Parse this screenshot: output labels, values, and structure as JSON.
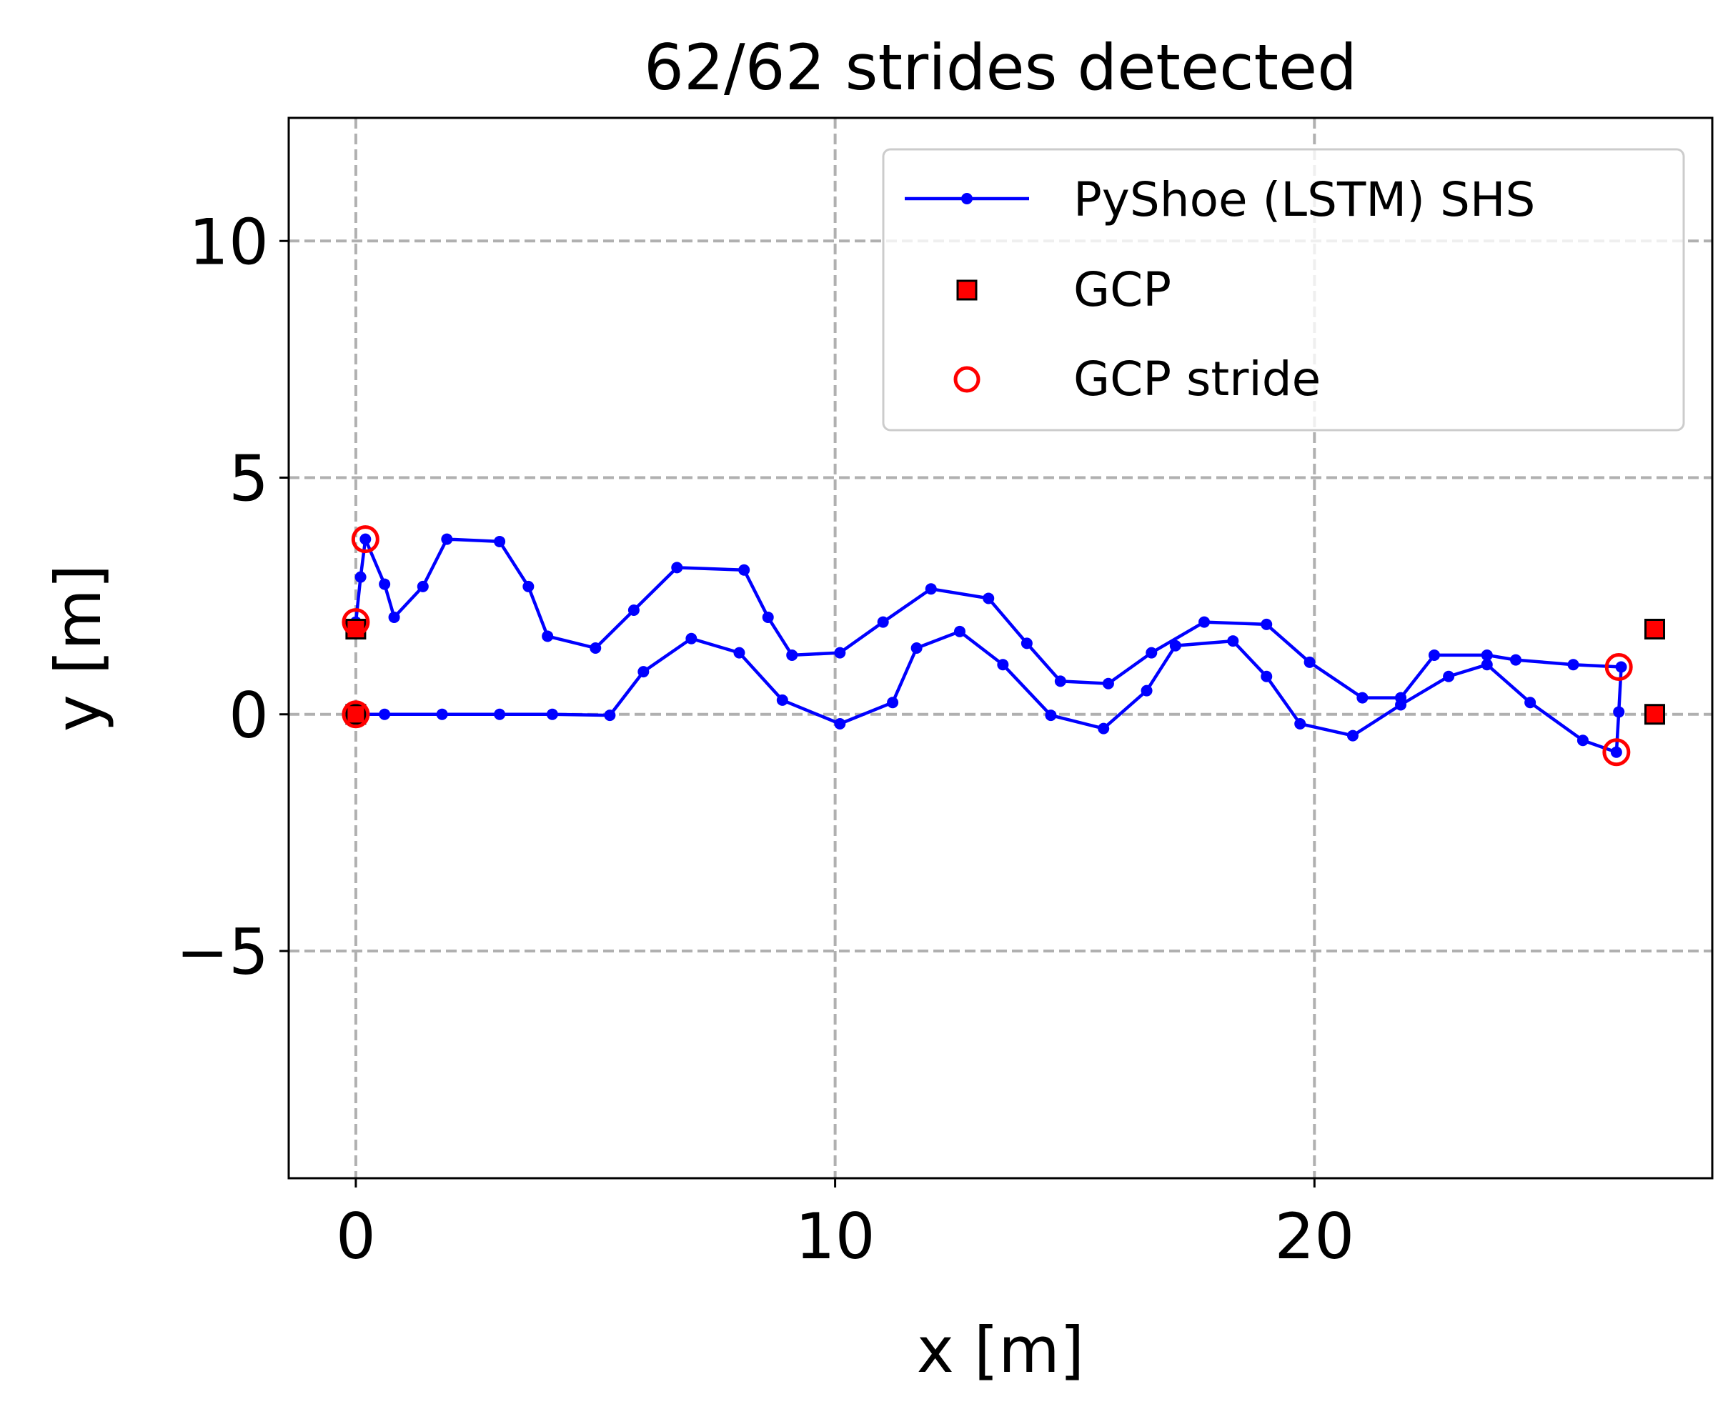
{
  "chart_data": {
    "type": "scatter",
    "title": "62/62 strides detected",
    "xlabel": "x [m]",
    "ylabel": "y [m]",
    "xlim": [
      -1.4,
      28.3
    ],
    "ylim": [
      -9.8,
      12.6
    ],
    "x_ticks": [
      0,
      10,
      20
    ],
    "y_ticks": [
      -5,
      0,
      5,
      10
    ],
    "x_tick_labels": [
      "0",
      "10",
      "20"
    ],
    "y_tick_labels": [
      "−5",
      "0",
      "5",
      "10"
    ],
    "grid": true,
    "legend_position": "upper-right",
    "colors": {
      "trajectory": "#0000ff",
      "gcp_fill": "#ff0000",
      "gcp_edge": "#000000",
      "gcp_stride": "#ff0000",
      "grid": "#b0b0b0"
    },
    "series": [
      {
        "name": "PyShoe (LSTM) SHS",
        "kind": "line-marker",
        "x": [
          0.0,
          0.6,
          1.8,
          3.0,
          4.1,
          5.3,
          6.0,
          7.0,
          8.0,
          8.9,
          10.1,
          11.2,
          11.7,
          12.6,
          13.5,
          14.5,
          15.6,
          16.5,
          17.1,
          18.3,
          19.0,
          19.7,
          20.8,
          21.8,
          22.8,
          23.6,
          24.5,
          25.6,
          26.3,
          26.35,
          26.4,
          25.4,
          24.2,
          23.6,
          22.5,
          21.8,
          21.0,
          19.9,
          19.0,
          17.7,
          16.6,
          15.7,
          14.7,
          14.0,
          13.2,
          12.0,
          11.0,
          10.1,
          9.1,
          8.6,
          8.1,
          6.7,
          5.8,
          5.0,
          4.0,
          3.6,
          3.0,
          1.9,
          1.4,
          0.8,
          0.6,
          0.2,
          0.1,
          0.0
        ],
        "y": [
          0.0,
          0.0,
          0.0,
          0.0,
          0.0,
          -0.02,
          0.9,
          1.6,
          1.3,
          0.3,
          -0.2,
          0.25,
          1.4,
          1.75,
          1.05,
          -0.02,
          -0.3,
          0.5,
          1.45,
          1.55,
          0.8,
          -0.2,
          -0.45,
          0.2,
          0.8,
          1.05,
          0.25,
          -0.55,
          -0.8,
          0.05,
          1.0,
          1.05,
          1.15,
          1.25,
          1.25,
          0.35,
          0.35,
          1.1,
          1.9,
          1.95,
          1.3,
          0.65,
          0.7,
          1.5,
          2.45,
          2.65,
          1.95,
          1.3,
          1.25,
          2.05,
          3.05,
          3.1,
          2.2,
          1.4,
          1.65,
          2.7,
          3.65,
          3.7,
          2.7,
          2.05,
          2.75,
          3.7,
          2.9,
          1.95
        ]
      },
      {
        "name": "GCP",
        "kind": "square-marker",
        "x": [
          0.0,
          0.0,
          27.1,
          27.1
        ],
        "y": [
          1.8,
          0.0,
          1.8,
          0.0
        ]
      },
      {
        "name": "GCP stride",
        "kind": "open-circle",
        "x": [
          0.0,
          0.0,
          0.2,
          26.3,
          26.35
        ],
        "y": [
          0.0,
          1.95,
          3.7,
          -0.8,
          1.0
        ]
      }
    ]
  }
}
